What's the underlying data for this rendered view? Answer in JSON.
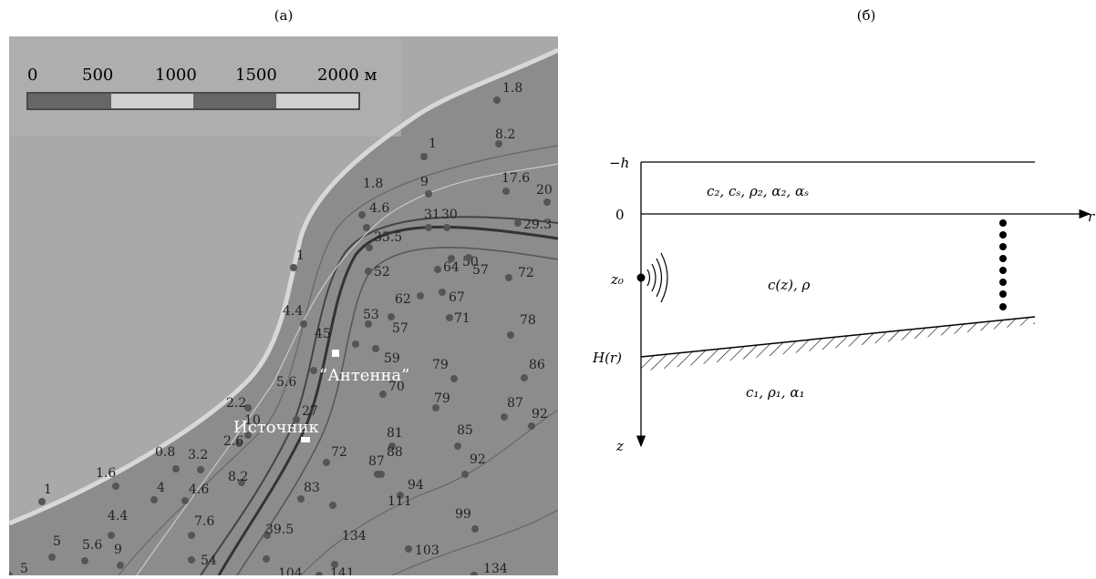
{
  "panel_a": {
    "label": "(a)",
    "scale": [
      "0",
      "500",
      "1000",
      "1500",
      "2000 м"
    ],
    "source": "Источник",
    "antenna": "“Антенна”",
    "depths": [
      1.8,
      8.2,
      1,
      9,
      17.6,
      1.8,
      4.6,
      20,
      30,
      31,
      29.3,
      35.5,
      50,
      1,
      52,
      64,
      57,
      72,
      62,
      67,
      78,
      4.4,
      53,
      57,
      71,
      45,
      59,
      86,
      79,
      5.6,
      70,
      79,
      87,
      92,
      2.2,
      27,
      10,
      2.6,
      81,
      85,
      0.8,
      3.2,
      72,
      88,
      87,
      92,
      1.6,
      4,
      4.6,
      8.2,
      83,
      94,
      1,
      111,
      4.4,
      7.6,
      39.5,
      99,
      5,
      5.6,
      9,
      134,
      103,
      54,
      5,
      104,
      141,
      134
    ]
  },
  "panel_b": {
    "label": "(б)",
    "minus_h": "−h",
    "zero": "0",
    "upper_layer": "c₂, cₛ, ρ₂, α₂, αₛ",
    "water": "c(z), ρ",
    "z0": "z₀",
    "bottom": "H(r)",
    "lower_layer": "c₁, ρ₁, α₁",
    "z_axis": "z",
    "r_axis": "r"
  }
}
